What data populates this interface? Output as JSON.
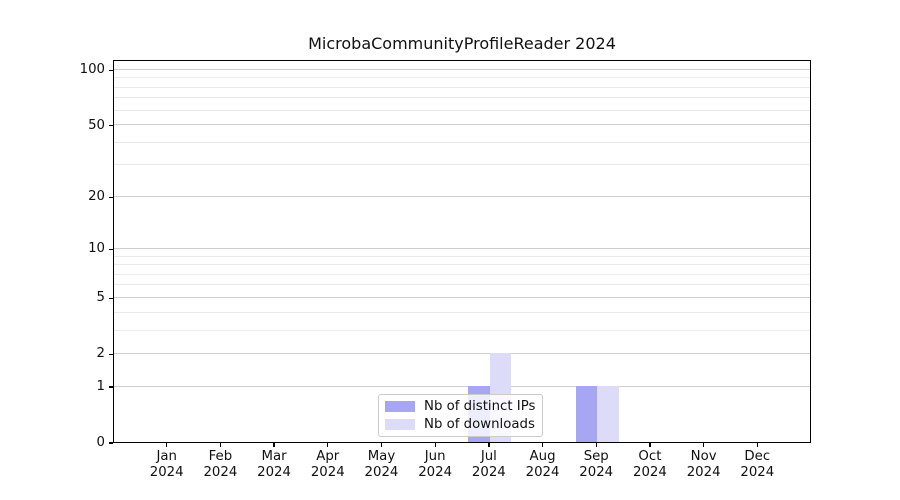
{
  "title": "MicrobaCommunityProfileReader 2024",
  "chart_data": {
    "type": "bar",
    "title": "MicrobaCommunityProfileReader 2024",
    "categories": [
      "Jan 2024",
      "Feb 2024",
      "Mar 2024",
      "Apr 2024",
      "May 2024",
      "Jun 2024",
      "Jul 2024",
      "Aug 2024",
      "Sep 2024",
      "Oct 2024",
      "Nov 2024",
      "Dec 2024"
    ],
    "series": [
      {
        "name": "Nb of distinct IPs",
        "color": "#a6a6f3",
        "values": [
          0,
          0,
          0,
          0,
          0,
          0,
          1,
          0,
          1,
          0,
          0,
          0
        ]
      },
      {
        "name": "Nb of downloads",
        "color": "#dcdcf9",
        "values": [
          0,
          0,
          0,
          0,
          0,
          0,
          2,
          0,
          1,
          0,
          0,
          0
        ]
      }
    ],
    "yscale": "log1p",
    "ylim": [
      0,
      114
    ],
    "y_major_ticks": [
      0,
      1,
      2,
      5,
      10,
      20,
      50,
      100
    ],
    "y_minor_ticks": [
      3,
      4,
      6,
      7,
      8,
      9,
      30,
      40,
      60,
      70,
      80,
      90
    ],
    "grid": true,
    "legend_position": "lower center",
    "xlabel": "",
    "ylabel": ""
  },
  "colors": {
    "major_grid": "#cfcfcf",
    "minor_grid": "#eaeaea",
    "spine": "#000000",
    "background": "#ffffff"
  }
}
